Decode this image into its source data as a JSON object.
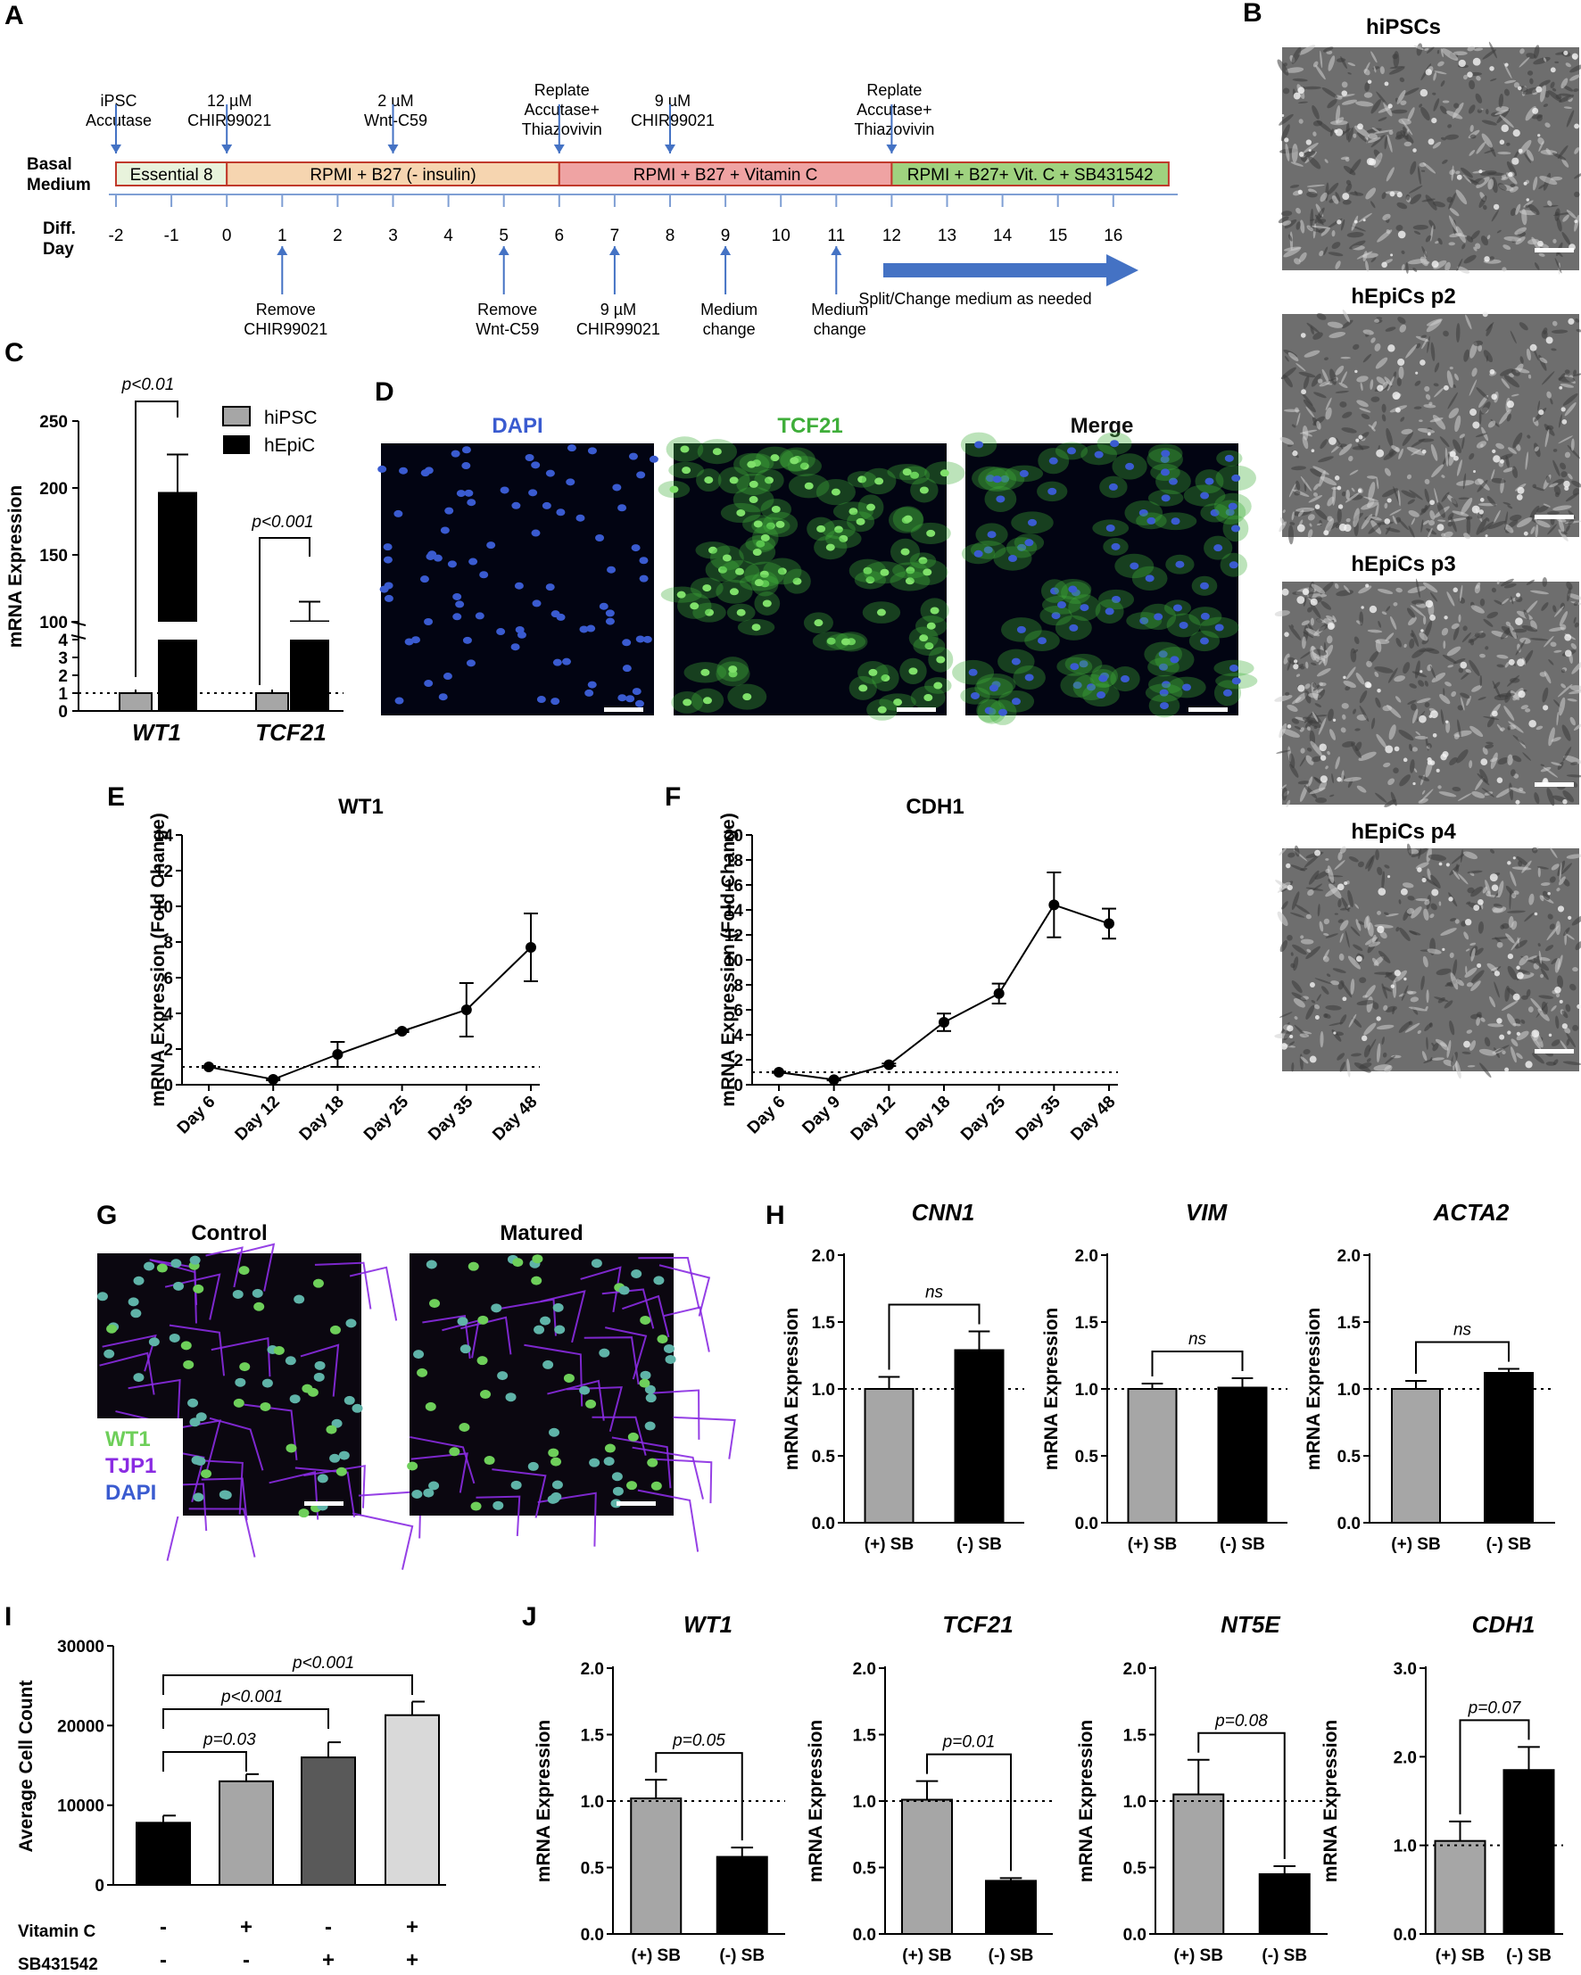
{
  "colors": {
    "gray_bar": "#a6a6a6",
    "black_bar": "#000000",
    "dark_gray_bar": "#595959",
    "light_gray_bar": "#d9d9d9",
    "dapi_blue": "#3a5bd0",
    "tcf21_green": "#3fae3a",
    "wt1_green": "#6ecf5a",
    "tjp1_purple": "#8a2be2",
    "timeline_arrow": "#4472c4"
  },
  "icons": {
    "scale_bar": "scale-bar-icon",
    "arrow": "arrow-icon"
  },
  "panel_labels": [
    "A",
    "B",
    "C",
    "D",
    "E",
    "F",
    "G",
    "H",
    "I",
    "J"
  ],
  "panelA": {
    "basal_label": "Basal\nMedium",
    "diff_label": "Diff.\nDay",
    "segments": [
      {
        "label": "Essential 8",
        "color": "#e8f3dc",
        "border": "#c0392b",
        "from": -2,
        "to": 0
      },
      {
        "label": "RPMI + B27 (- insulin)",
        "color": "#f6d5b0",
        "border": "#c0392b",
        "from": 0,
        "to": 6
      },
      {
        "label": "RPMI + B27 + Vitamin C",
        "color": "#efa3a3",
        "border": "#c0392b",
        "from": 6,
        "to": 12
      },
      {
        "label": "RPMI + B27+ Vit. C + SB431542",
        "color": "#9fd27f",
        "border": "#c0392b",
        "from": 12,
        "to": 17
      }
    ],
    "days": [
      "-2",
      "-1",
      "0",
      "1",
      "2",
      "3",
      "4",
      "5",
      "6",
      "7",
      "8",
      "9",
      "10",
      "11",
      "12",
      "13",
      "14",
      "15",
      "16"
    ],
    "top_events": [
      {
        "day": -2,
        "text": "iPSC\nAccutase"
      },
      {
        "day": 0,
        "text": "12 µM\nCHIR99021"
      },
      {
        "day": 3,
        "text": "2 µM\nWnt-C59"
      },
      {
        "day": 6,
        "text": "Replate\nAccutase+\nThiazovivin"
      },
      {
        "day": 8,
        "text": "9 µM\nCHIR99021"
      },
      {
        "day": 12,
        "text": "Replate\nAccutase+\nThiazovivin"
      }
    ],
    "bottom_events": [
      {
        "day": 1,
        "text": "Remove\nCHIR99021"
      },
      {
        "day": 5,
        "text": "Remove\nWnt-C59"
      },
      {
        "day": 7,
        "text": "9 µM\nCHIR99021"
      },
      {
        "day": 9,
        "text": "Medium\nchange"
      },
      {
        "day": 11,
        "text": "Medium\nchange"
      }
    ],
    "split_text": "Split/Change  medium  as needed"
  },
  "panelB": {
    "titles": [
      "hiPSCs",
      "hEpiCs p2",
      "hEpiCs p3",
      "hEpiCs p4"
    ]
  },
  "panelD": {
    "titles": [
      "DAPI",
      "TCF21",
      "Merge"
    ]
  },
  "panelG": {
    "titles": [
      "Control",
      "Matured"
    ],
    "legend": [
      "WT1",
      "TJP1",
      "DAPI"
    ]
  },
  "chart_data": [
    {
      "panel": "C",
      "type": "bar",
      "ylabel": "mRNA Expression",
      "categories": [
        "WT1",
        "TCF21"
      ],
      "series": [
        {
          "name": "hiPSC",
          "values": [
            1,
            1
          ],
          "errors": [
            0.2,
            0.2
          ]
        },
        {
          "name": "hEpiC",
          "values": [
            197,
            101
          ],
          "errors": [
            28,
            14
          ]
        }
      ],
      "y_lower_ticks": [
        "0",
        "1",
        "2",
        "3",
        "4"
      ],
      "y_upper_ticks": [
        "100",
        "150",
        "200",
        "250"
      ],
      "reference_line": 1,
      "annotations": [
        "p<0.01",
        "p<0.001"
      ]
    },
    {
      "panel": "E",
      "type": "line",
      "title": "WT1",
      "ylabel": "mRNA Expression (Fold Change)",
      "categories": [
        "Day 6",
        "Day 12",
        "Day 18",
        "Day 25",
        "Day 35",
        "Day 48"
      ],
      "values": [
        1,
        0.3,
        1.7,
        3.0,
        4.2,
        7.7
      ],
      "errors": [
        0.05,
        0.05,
        0.7,
        0.05,
        1.5,
        1.9
      ],
      "ylim": [
        0,
        14
      ],
      "yticks": [
        0,
        2,
        4,
        6,
        8,
        10,
        12,
        14
      ],
      "reference_line": 1
    },
    {
      "panel": "F",
      "type": "line",
      "title": "CDH1",
      "ylabel": "mRNA Expression (Fold Change)",
      "categories": [
        "Day 6",
        "Day 9",
        "Day 12",
        "Day 18",
        "Day 25",
        "Day 35",
        "Day 48"
      ],
      "values": [
        1,
        0.4,
        1.6,
        5.0,
        7.3,
        14.4,
        12.9
      ],
      "errors": [
        0.05,
        0.05,
        0.1,
        0.7,
        0.8,
        2.6,
        1.2
      ],
      "ylim": [
        0,
        20
      ],
      "yticks": [
        0,
        2,
        4,
        6,
        8,
        10,
        12,
        14,
        16,
        18,
        20
      ],
      "reference_line": 1
    },
    {
      "panel": "H",
      "type": "bar",
      "title": "CNN1",
      "ylabel": "mRNA Expression",
      "categories": [
        "(+) SB",
        "(-) SB"
      ],
      "values": [
        1.0,
        1.29
      ],
      "errors": [
        0.09,
        0.14
      ],
      "ylim": [
        0,
        2
      ],
      "yticks": [
        "0.0",
        "0.5",
        "1.0",
        "1.5",
        "2.0"
      ],
      "reference_line": 1,
      "annotation": "ns"
    },
    {
      "panel": "H",
      "type": "bar",
      "title": "VIM",
      "ylabel": "mRNA Expression",
      "categories": [
        "(+) SB",
        "(-) SB"
      ],
      "values": [
        1.0,
        1.01
      ],
      "errors": [
        0.04,
        0.07
      ],
      "ylim": [
        0,
        2
      ],
      "yticks": [
        "0.0",
        "0.5",
        "1.0",
        "1.5",
        "2.0"
      ],
      "reference_line": 1,
      "annotation": "ns"
    },
    {
      "panel": "H",
      "type": "bar",
      "title": "ACTA2",
      "ylabel": "mRNA Expression",
      "categories": [
        "(+) SB",
        "(-) SB"
      ],
      "values": [
        1.0,
        1.12
      ],
      "errors": [
        0.06,
        0.03
      ],
      "ylim": [
        0,
        2
      ],
      "yticks": [
        "0.0",
        "0.5",
        "1.0",
        "1.5",
        "2.0"
      ],
      "reference_line": 1,
      "annotation": "ns"
    },
    {
      "panel": "I",
      "type": "bar",
      "ylabel": "Average Cell Count",
      "values": [
        7800,
        13000,
        16000,
        21300
      ],
      "errors": [
        900,
        900,
        1900,
        1700
      ],
      "ylim": [
        0,
        30000
      ],
      "yticks": [
        "0",
        "10000",
        "20000",
        "30000"
      ],
      "row_labels": [
        "Vitamin C",
        "SB431542"
      ],
      "row_values": [
        [
          "-",
          "+",
          "-",
          "+"
        ],
        [
          "-",
          "-",
          "+",
          "+"
        ]
      ],
      "annotations": [
        "p=0.03",
        "p<0.001",
        "p<0.001"
      ]
    },
    {
      "panel": "J",
      "type": "bar",
      "title": "WT1",
      "ylabel": "mRNA Expression",
      "categories": [
        "(+) SB",
        "(-) SB"
      ],
      "values": [
        1.02,
        0.58
      ],
      "errors": [
        0.14,
        0.07
      ],
      "ylim": [
        0,
        2
      ],
      "yticks": [
        "0.0",
        "0.5",
        "1.0",
        "1.5",
        "2.0"
      ],
      "reference_line": 1,
      "annotation": "p=0.05"
    },
    {
      "panel": "J",
      "type": "bar",
      "title": "TCF21",
      "ylabel": "mRNA Expression",
      "categories": [
        "(+) SB",
        "(-) SB"
      ],
      "values": [
        1.01,
        0.4
      ],
      "errors": [
        0.14,
        0.02
      ],
      "ylim": [
        0,
        2
      ],
      "yticks": [
        "0.0",
        "0.5",
        "1.0",
        "1.5",
        "2.0"
      ],
      "reference_line": 1,
      "annotation": "p=0.01"
    },
    {
      "panel": "J",
      "type": "bar",
      "title": "NT5E",
      "ylabel": "mRNA Expression",
      "categories": [
        "(+) SB",
        "(-) SB"
      ],
      "values": [
        1.05,
        0.45
      ],
      "errors": [
        0.26,
        0.06
      ],
      "ylim": [
        0,
        2
      ],
      "yticks": [
        "0.0",
        "0.5",
        "1.0",
        "1.5",
        "2.0"
      ],
      "reference_line": 1,
      "annotation": "p=0.08"
    },
    {
      "panel": "J",
      "type": "bar",
      "title": "CDH1",
      "ylabel": "mRNA Expression",
      "categories": [
        "(+) SB",
        "(-) SB"
      ],
      "values": [
        1.05,
        1.85
      ],
      "errors": [
        0.22,
        0.26
      ],
      "ylim": [
        0,
        3
      ],
      "yticks": [
        "0.0",
        "1.0",
        "2.0",
        "3.0"
      ],
      "reference_line": 1,
      "annotation": "p=0.07"
    }
  ]
}
